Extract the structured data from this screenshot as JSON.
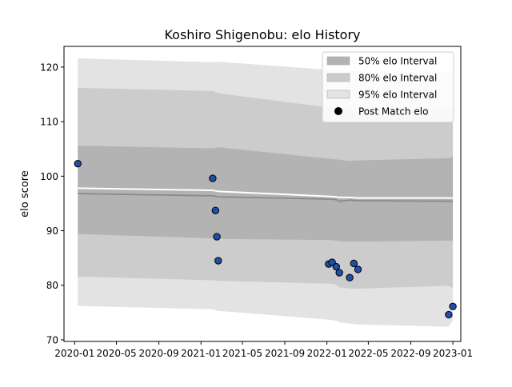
{
  "chart_data": {
    "type": "scatter",
    "title": "Koshiro Shigenobu: elo History",
    "xlabel": "",
    "ylabel": "elo score",
    "xlim": [
      "2019-12-01",
      "2023-01-24"
    ],
    "ylim": [
      69.7,
      123.8
    ],
    "x_ticks": [
      "2020-01",
      "2020-05",
      "2020-09",
      "2021-01",
      "2021-05",
      "2021-09",
      "2022-01",
      "2022-05",
      "2022-09",
      "2023-01"
    ],
    "y_ticks": [
      70,
      80,
      90,
      100,
      110,
      120
    ],
    "grid": false,
    "legend": {
      "position": "top-right",
      "entries": [
        "50% elo Interval",
        "80% elo Interval",
        "95% elo Interval",
        "Post Match elo"
      ]
    },
    "colors": {
      "band_50": "#b3b3b3",
      "band_80": "#cccccc",
      "band_95": "#e3e3e3",
      "median_line": "#8a8a8a",
      "mean_line": "#ffffff",
      "marker_fill": "#1f4fa8",
      "marker_edge": "#000000"
    },
    "intervals": {
      "x": [
        "2020-01-10",
        "2021-02-04",
        "2021-02-20",
        "2022-01-06",
        "2022-01-28",
        "2022-02-06",
        "2022-03-08",
        "2022-04-01",
        "2022-04-11",
        "2022-12-20",
        "2023-01-01"
      ],
      "p95_low": [
        76.2,
        75.6,
        75.3,
        73.7,
        73.5,
        73.2,
        73.0,
        72.8,
        72.8,
        72.4,
        73.5
      ],
      "p80_low": [
        81.6,
        80.9,
        80.8,
        80.3,
        80.1,
        79.6,
        79.4,
        79.4,
        79.4,
        79.9,
        79.5
      ],
      "p50_low": [
        89.4,
        88.6,
        88.5,
        88.3,
        88.2,
        88.1,
        88.0,
        88.0,
        88.0,
        88.2,
        88.1
      ],
      "median": [
        96.8,
        96.4,
        96.2,
        95.8,
        95.7,
        95.4,
        95.6,
        95.5,
        95.5,
        95.4,
        95.4
      ],
      "mean": [
        97.8,
        97.4,
        97.2,
        96.3,
        96.2,
        96.1,
        96.1,
        96.0,
        96.0,
        96.0,
        96.0
      ],
      "p50_high": [
        105.6,
        105.1,
        105.3,
        103.2,
        103.1,
        103.0,
        102.8,
        102.9,
        102.9,
        103.3,
        103.6
      ],
      "p80_high": [
        116.2,
        115.6,
        115.2,
        112.6,
        112.5,
        112.3,
        112.1,
        112.1,
        112.1,
        112.3,
        112.3
      ],
      "p95_high": [
        121.6,
        120.9,
        121.0,
        119.5,
        119.4,
        119.3,
        119.2,
        119.2,
        119.2,
        119.1,
        119.3
      ]
    },
    "series": [
      {
        "name": "Post Match elo",
        "points": [
          {
            "x": "2020-01-10",
            "y": 102.3
          },
          {
            "x": "2021-02-04",
            "y": 99.6
          },
          {
            "x": "2021-02-12",
            "y": 93.7
          },
          {
            "x": "2021-02-16",
            "y": 88.9
          },
          {
            "x": "2021-02-20",
            "y": 84.5
          },
          {
            "x": "2022-01-06",
            "y": 83.9
          },
          {
            "x": "2022-01-16",
            "y": 84.2
          },
          {
            "x": "2022-01-28",
            "y": 83.4
          },
          {
            "x": "2022-02-06",
            "y": 82.3
          },
          {
            "x": "2022-03-08",
            "y": 81.4
          },
          {
            "x": "2022-03-20",
            "y": 84.0
          },
          {
            "x": "2022-04-01",
            "y": 82.9
          },
          {
            "x": "2022-12-20",
            "y": 74.6
          },
          {
            "x": "2023-01-01",
            "y": 76.1
          }
        ]
      }
    ]
  }
}
